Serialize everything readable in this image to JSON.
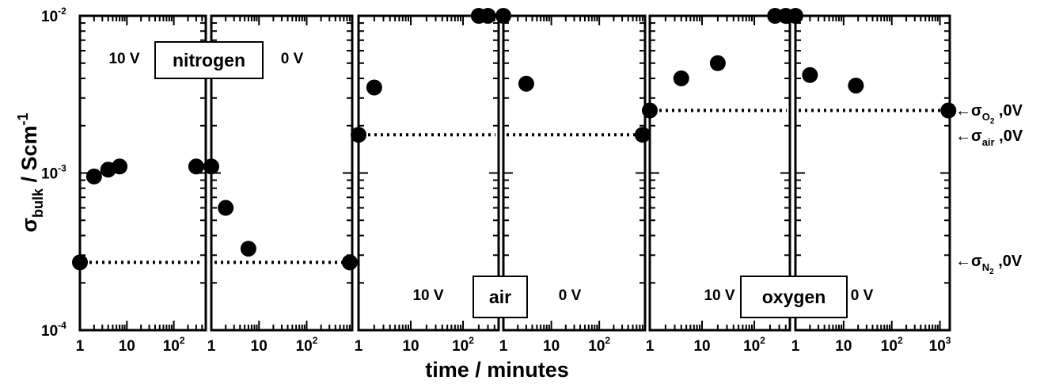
{
  "chart_data": {
    "type": "scatter",
    "xlabel": "time / minutes",
    "ylabel": {
      "symbol": "σ",
      "subscript": "bulk",
      "unit": " / Scm",
      "unit_exponent": "-1"
    },
    "yscale": "log",
    "ylim": [
      0.0001,
      0.01
    ],
    "yticks": [
      {
        "value": 0.01,
        "base": "10",
        "exp": "-2"
      },
      {
        "value": 0.001,
        "base": "10",
        "exp": "-3"
      },
      {
        "value": 0.0001,
        "base": "10",
        "exp": "-4"
      }
    ],
    "xscale": "log",
    "xtick_labels": [
      {
        "value": 1,
        "base": "1",
        "exp": ""
      },
      {
        "value": 10,
        "base": "10",
        "exp": ""
      },
      {
        "value": 100,
        "base": "10",
        "exp": "2"
      },
      {
        "value": 1000,
        "base": "10",
        "exp": "3"
      }
    ],
    "panels": [
      {
        "group": "nitrogen",
        "condition": "10 V",
        "xlim": [
          1,
          480
        ],
        "ref": 0.00027,
        "points": [
          [
            1,
            0.00027
          ],
          [
            2,
            0.00095
          ],
          [
            4,
            0.00105
          ],
          [
            7,
            0.0011
          ],
          [
            300,
            0.0011
          ]
        ]
      },
      {
        "group": "nitrogen",
        "condition": "0 V",
        "xlim": [
          1,
          900
        ],
        "ref": 0.00027,
        "points": [
          [
            1,
            0.0011
          ],
          [
            2,
            0.0006
          ],
          [
            6,
            0.00033
          ],
          [
            800,
            0.00027
          ]
        ]
      },
      {
        "group": "air",
        "condition": "10 V",
        "xlim": [
          1,
          480
        ],
        "ref": 0.00175,
        "points": [
          [
            1,
            0.00175
          ],
          [
            2,
            0.0035
          ],
          [
            200,
            0.01
          ],
          [
            300,
            0.01
          ]
        ]
      },
      {
        "group": "air",
        "condition": "0 V",
        "xlim": [
          1,
          900
        ],
        "ref": 0.00175,
        "points": [
          [
            1,
            0.01
          ],
          [
            3,
            0.0037
          ],
          [
            800,
            0.00175
          ]
        ]
      },
      {
        "group": "oxygen",
        "condition": "10 V",
        "xlim": [
          1,
          480
        ],
        "ref": 0.0025,
        "points": [
          [
            1,
            0.0025
          ],
          [
            4,
            0.004
          ],
          [
            20,
            0.005
          ],
          [
            250,
            0.01
          ],
          [
            400,
            0.01
          ]
        ]
      },
      {
        "group": "oxygen",
        "condition": "0 V",
        "xlim": [
          1,
          1600
        ],
        "ref": 0.0025,
        "points": [
          [
            1,
            0.01
          ],
          [
            2,
            0.0042
          ],
          [
            18,
            0.0036
          ],
          [
            1500,
            0.0025
          ]
        ]
      }
    ],
    "groups": [
      "nitrogen",
      "air",
      "oxygen"
    ],
    "annotations": [
      {
        "arrow": "←",
        "symbol": "σ",
        "subscript": "O",
        "sub2": "2",
        "suffix": " ,0V",
        "value": 0.0025
      },
      {
        "arrow": "←",
        "symbol": "σ",
        "subscript": "air",
        "sub2": "",
        "suffix": " ,0V",
        "value": 0.00175
      },
      {
        "arrow": "←",
        "symbol": "σ",
        "subscript": "N",
        "sub2": "2",
        "suffix": " ,0V",
        "value": 0.00027
      }
    ]
  }
}
